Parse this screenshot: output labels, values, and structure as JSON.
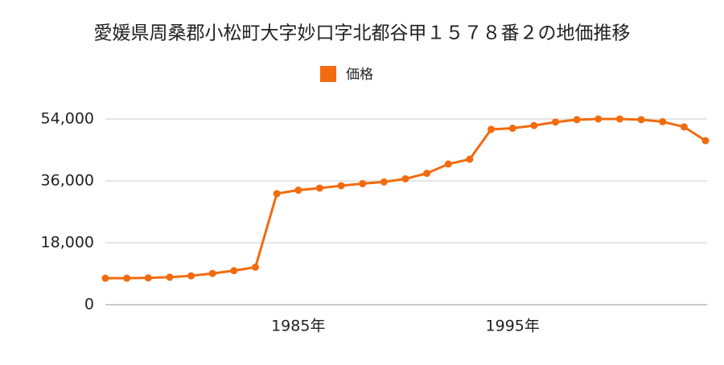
{
  "chart_data": {
    "type": "line",
    "title": "愛媛県周桑郡小松町大字妙口字北都谷甲１５７８番２の地価推移",
    "x": [
      1976,
      1977,
      1978,
      1979,
      1980,
      1981,
      1982,
      1983,
      1984,
      1985,
      1986,
      1987,
      1988,
      1989,
      1990,
      1991,
      1992,
      1993,
      1994,
      1995,
      1996,
      1997,
      1998,
      1999,
      2000,
      2001,
      2002,
      2003,
      2004
    ],
    "series": [
      {
        "name": "価格",
        "color": "#f26b0f",
        "values": [
          7700,
          7700,
          7800,
          8000,
          8400,
          9100,
          9900,
          10900,
          32300,
          33300,
          33900,
          34600,
          35200,
          35700,
          36600,
          38200,
          40900,
          42300,
          51000,
          51300,
          52100,
          53100,
          53800,
          54000,
          54000,
          53800,
          53200,
          51700,
          47700
        ]
      }
    ],
    "xlim": [
      1976,
      2004
    ],
    "xticks": [
      {
        "value": 1985,
        "label": "1985年"
      },
      {
        "value": 1995,
        "label": "1995年"
      }
    ],
    "ylim": [
      0,
      54000
    ],
    "yticks": [
      0,
      {
        "value": 18000,
        "label": "18,000"
      },
      {
        "value": 36000,
        "label": "36,000"
      },
      {
        "value": 54000,
        "label": "54,000"
      }
    ],
    "grid": true,
    "legend": "top"
  }
}
